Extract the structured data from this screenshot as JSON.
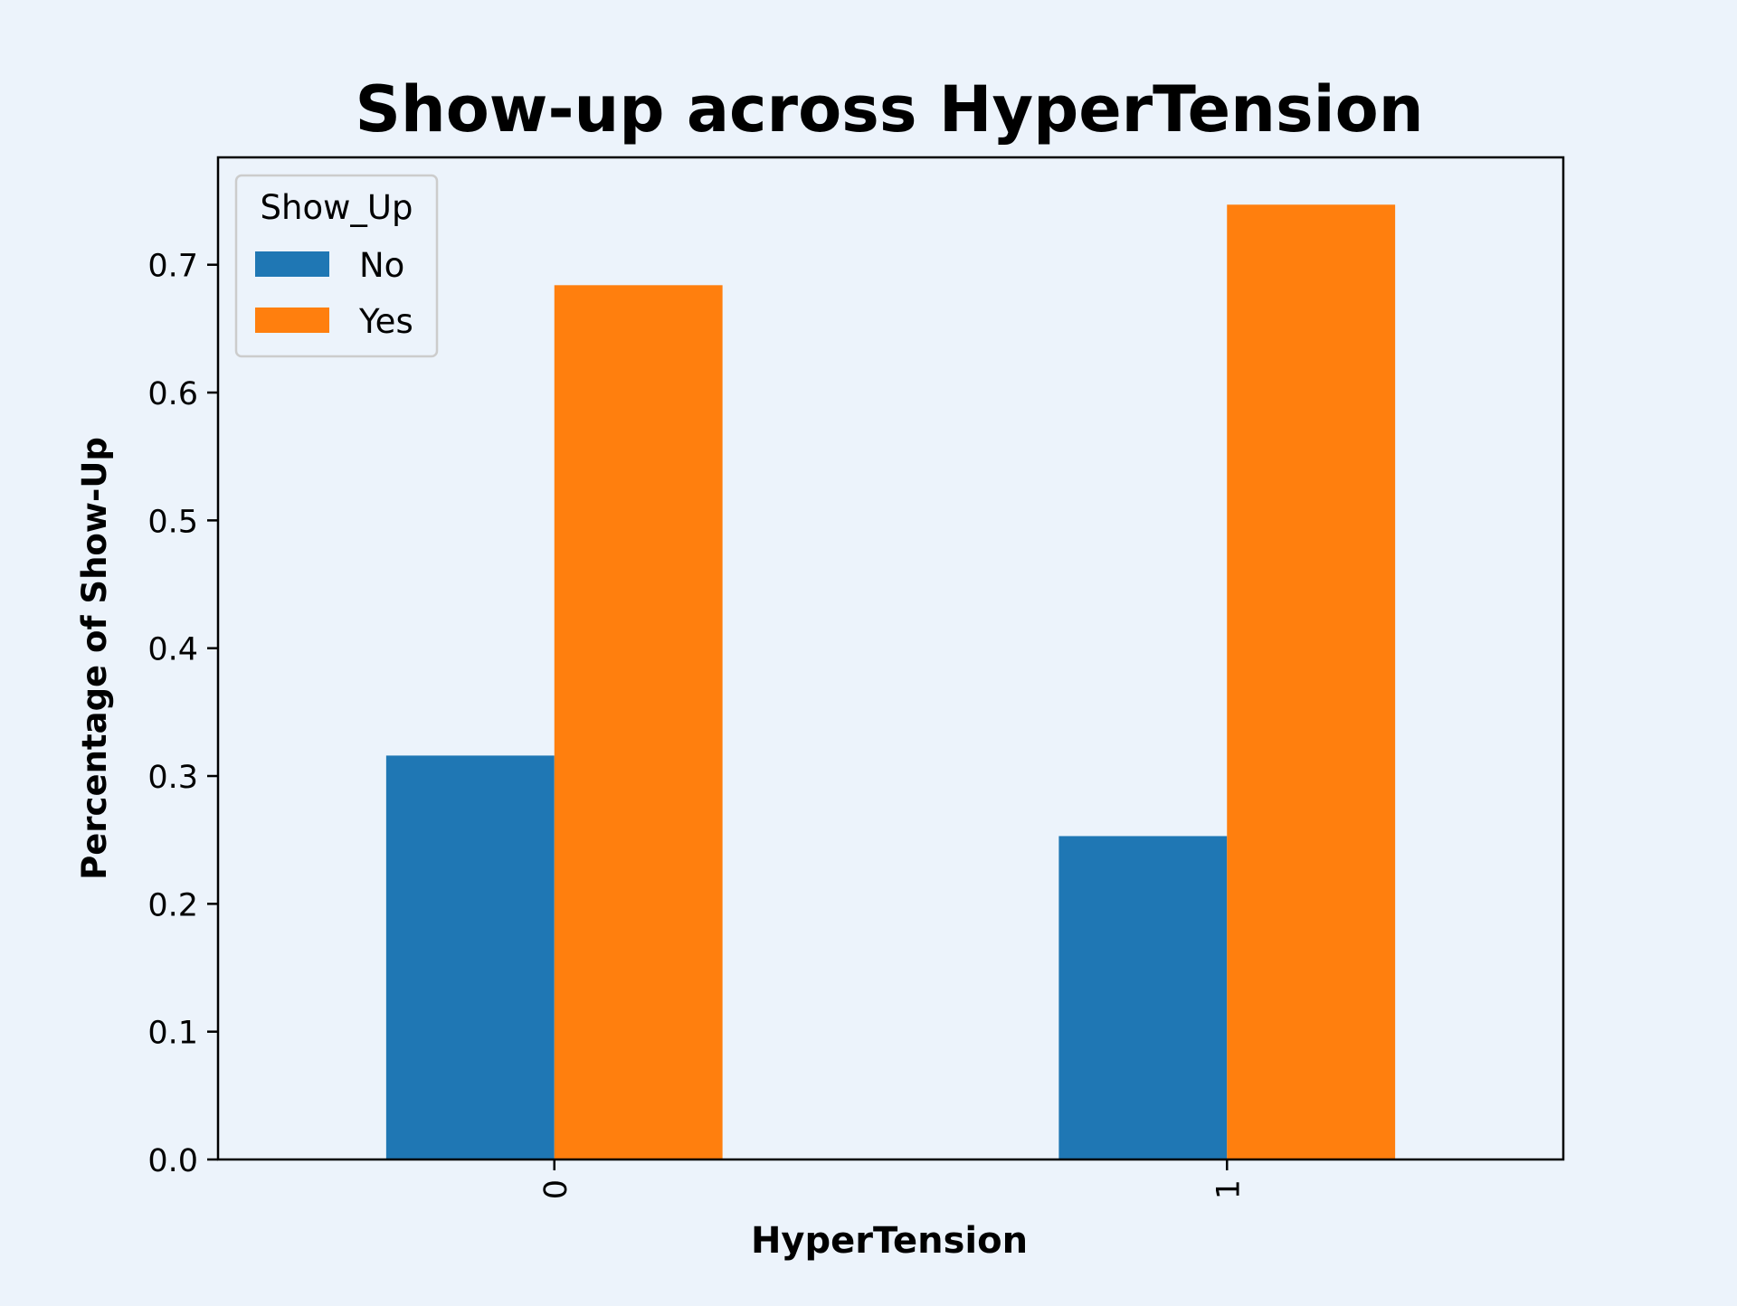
{
  "chart_data": {
    "type": "bar",
    "title": "Show-up across HyperTension",
    "xlabel": "HyperTension",
    "ylabel": "Percentage of Show-Up",
    "categories": [
      "0",
      "1"
    ],
    "series": [
      {
        "name": "No",
        "values": [
          0.316,
          0.253
        ],
        "color": "#1f77b4"
      },
      {
        "name": "Yes",
        "values": [
          0.684,
          0.747
        ],
        "color": "#ff7f0e"
      }
    ],
    "ylim": [
      0,
      0.784
    ],
    "yticks": [
      0.0,
      0.1,
      0.2,
      0.3,
      0.4,
      0.5,
      0.6,
      0.7
    ],
    "ytick_labels": [
      "0.0",
      "0.1",
      "0.2",
      "0.3",
      "0.4",
      "0.5",
      "0.6",
      "0.7"
    ],
    "legend": {
      "title": "Show_Up",
      "position": "top-left"
    },
    "grid": false,
    "background_color": "#ecf3fb"
  }
}
